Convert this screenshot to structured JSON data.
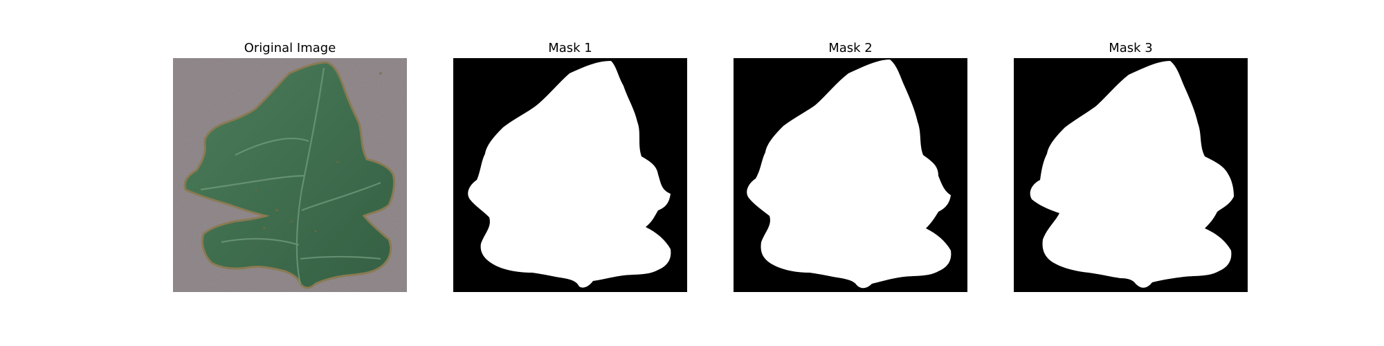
{
  "panels": [
    {
      "title": "Original Image",
      "kind": "photo"
    },
    {
      "title": "Mask 1",
      "kind": "mask"
    },
    {
      "title": "Mask 2",
      "kind": "mask"
    },
    {
      "title": "Mask 3",
      "kind": "mask"
    }
  ],
  "colors": {
    "background": "#ffffff",
    "mask_background": "#000000",
    "mask_foreground": "#ffffff",
    "photo_background": "#948c8e",
    "leaf_fill": "#3f6e4e",
    "leaf_edge": "#8a7a52"
  },
  "subject": "leaf-icon"
}
